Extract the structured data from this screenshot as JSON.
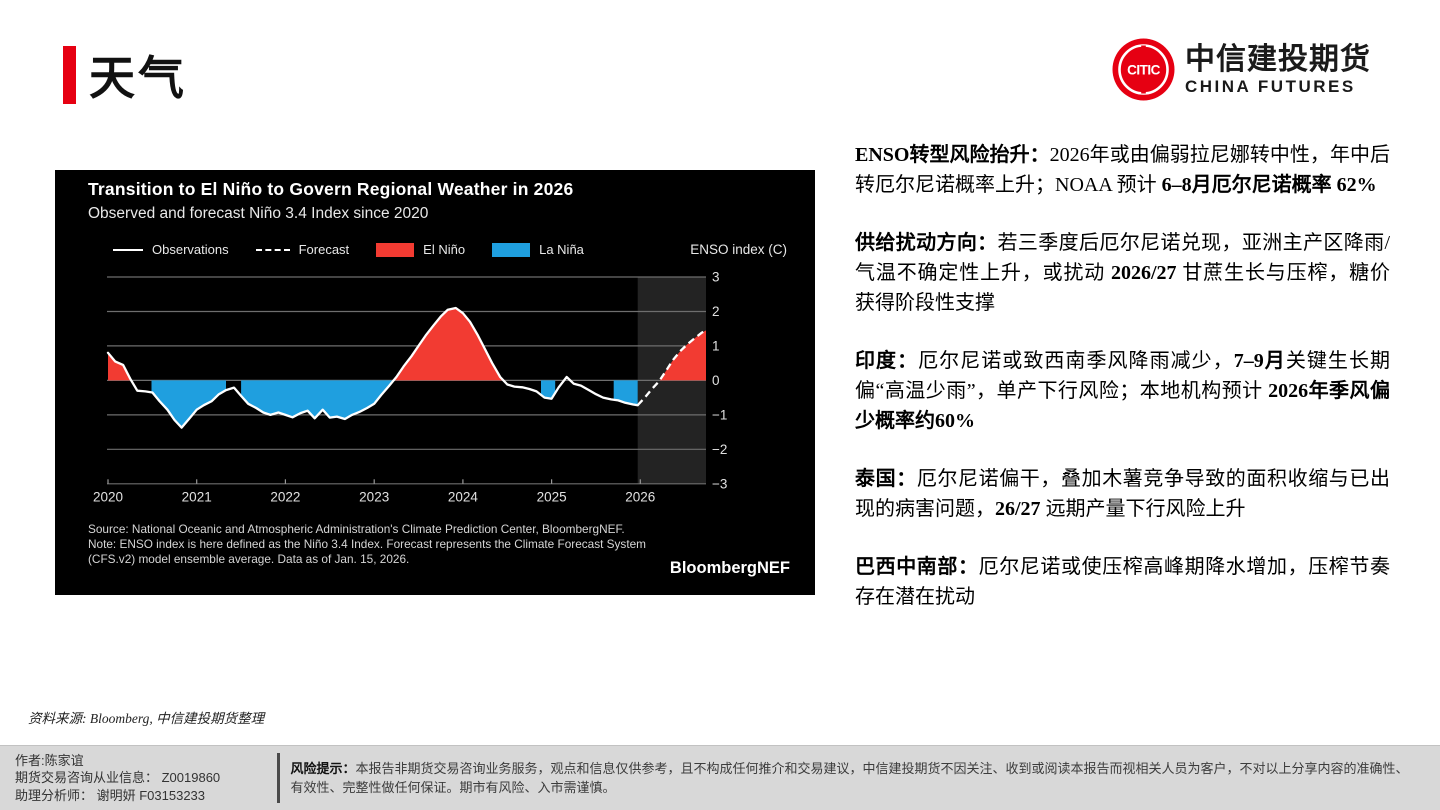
{
  "page": {
    "title": "天气",
    "source_line": "资料来源: Bloomberg, 中信建投期货整理"
  },
  "logo": {
    "monogram": "CITIC",
    "cn": "中信建投期货",
    "en": "CHINA FUTURES",
    "red": "#e60012"
  },
  "analysis": {
    "paragraphs": [
      {
        "runs": [
          {
            "bold": true,
            "text": "ENSO转型风险抬升："
          },
          {
            "bold": false,
            "text": "2026年或由偏弱拉尼娜转中性，年中后转厄尔尼诺概率上升；NOAA 预计 "
          },
          {
            "bold": true,
            "text": "6–8月厄尔尼诺概率 62%"
          }
        ]
      },
      {
        "runs": [
          {
            "bold": true,
            "text": "供给扰动方向："
          },
          {
            "bold": false,
            "text": "若三季度后厄尔尼诺兑现，亚洲主产区降雨/气温不确定性上升，或扰动 "
          },
          {
            "bold": true,
            "text": "2026/27"
          },
          {
            "bold": false,
            "text": " 甘蔗生长与压榨，糖价获得阶段性支撑"
          }
        ]
      },
      {
        "runs": [
          {
            "bold": true,
            "text": "印度："
          },
          {
            "bold": false,
            "text": "厄尔尼诺或致西南季风降雨减少，"
          },
          {
            "bold": true,
            "text": "7–9月"
          },
          {
            "bold": false,
            "text": "关键生长期偏“高温少雨”，单产下行风险；本地机构预计 "
          },
          {
            "bold": true,
            "text": "2026年季风偏少概率约60%"
          }
        ]
      },
      {
        "runs": [
          {
            "bold": true,
            "text": "泰国："
          },
          {
            "bold": false,
            "text": "厄尔尼诺偏干，叠加木薯竞争导致的面积收缩与已出现的病害问题，"
          },
          {
            "bold": true,
            "text": "26/27"
          },
          {
            "bold": false,
            "text": " 远期产量下行风险上升"
          }
        ]
      },
      {
        "runs": [
          {
            "bold": true,
            "text": "巴西中南部："
          },
          {
            "bold": false,
            "text": "厄尔尼诺或使压榨高峰期降水增加，压榨节奏存在潜在扰动"
          }
        ]
      }
    ]
  },
  "footer": {
    "author_line1": "作者:陈家谊",
    "author_line2": "期货交易咨询从业信息： Z0019860",
    "author_line3": "助理分析师： 谢明妍 F03153233",
    "risk_label": "风险提示：",
    "risk_text": "本报告非期货交易咨询业务服务，观点和信息仅供参考，且不构成任何推介和交易建议，中信建投期货不因关注、收到或阅读本报告而视相关人员为客户，不对以上分享内容的准确性、有效性、完整性做任何保证。期市有风险、入市需谨慎。"
  },
  "chart_data": {
    "type": "area",
    "title": "Transition to El Niño to Govern Regional Weather in 2026",
    "subtitle": "Observed and forecast Niño 3.4 Index since 2020",
    "axis_label": "ENSO index (C)",
    "legend": [
      "Observations",
      "Forecast",
      "El Niño",
      "La Niña"
    ],
    "brand": "BloombergNEF",
    "source_lines": [
      "Source: National Oceanic and Atmospheric Administration's Climate Prediction Center, BloombergNEF.",
      "Note: ENSO index is here defined as the Niño 3.4 Index. Forecast represents the Climate Forecast System (CFS.v2) model ensemble average. Data as of Jan. 15, 2026."
    ],
    "ylim": [
      -3,
      3
    ],
    "yticks": [
      3,
      2,
      1,
      0,
      -1,
      -2,
      -3
    ],
    "xticks": [
      2020,
      2021,
      2022,
      2023,
      2024,
      2025,
      2026
    ],
    "x_start": 2020.0,
    "x_end": 2026.74,
    "forecast_band_start": 2025.97,
    "grid": true,
    "legend_position": "top",
    "colors": {
      "el_nino": "#f23b32",
      "la_nina": "#1f9fdf",
      "line": "#ffffff",
      "grid": "#6e6e6e",
      "band": "#232323",
      "bg": "#000000"
    },
    "observations": [
      [
        2020.0,
        0.8
      ],
      [
        2020.08,
        0.55
      ],
      [
        2020.17,
        0.45
      ],
      [
        2020.25,
        0.05
      ],
      [
        2020.33,
        -0.3
      ],
      [
        2020.42,
        -0.32
      ],
      [
        2020.5,
        -0.35
      ],
      [
        2020.58,
        -0.6
      ],
      [
        2020.67,
        -0.85
      ],
      [
        2020.75,
        -1.15
      ],
      [
        2020.83,
        -1.37
      ],
      [
        2020.92,
        -1.1
      ],
      [
        2021.0,
        -0.85
      ],
      [
        2021.08,
        -0.72
      ],
      [
        2021.17,
        -0.6
      ],
      [
        2021.25,
        -0.4
      ],
      [
        2021.33,
        -0.28
      ],
      [
        2021.42,
        -0.21
      ],
      [
        2021.5,
        -0.45
      ],
      [
        2021.58,
        -0.68
      ],
      [
        2021.67,
        -0.8
      ],
      [
        2021.75,
        -0.93
      ],
      [
        2021.83,
        -1.0
      ],
      [
        2021.92,
        -0.93
      ],
      [
        2022.0,
        -1.0
      ],
      [
        2022.08,
        -1.07
      ],
      [
        2022.17,
        -0.95
      ],
      [
        2022.25,
        -0.88
      ],
      [
        2022.33,
        -1.1
      ],
      [
        2022.42,
        -0.85
      ],
      [
        2022.5,
        -1.08
      ],
      [
        2022.58,
        -1.05
      ],
      [
        2022.67,
        -1.12
      ],
      [
        2022.75,
        -1.0
      ],
      [
        2022.83,
        -0.92
      ],
      [
        2022.92,
        -0.8
      ],
      [
        2023.0,
        -0.68
      ],
      [
        2023.08,
        -0.42
      ],
      [
        2023.17,
        -0.15
      ],
      [
        2023.25,
        0.1
      ],
      [
        2023.33,
        0.4
      ],
      [
        2023.42,
        0.7
      ],
      [
        2023.5,
        1.0
      ],
      [
        2023.58,
        1.3
      ],
      [
        2023.67,
        1.6
      ],
      [
        2023.75,
        1.85
      ],
      [
        2023.83,
        2.05
      ],
      [
        2023.92,
        2.1
      ],
      [
        2024.0,
        1.95
      ],
      [
        2024.08,
        1.7
      ],
      [
        2024.17,
        1.3
      ],
      [
        2024.25,
        0.9
      ],
      [
        2024.33,
        0.5
      ],
      [
        2024.42,
        0.1
      ],
      [
        2024.5,
        -0.12
      ],
      [
        2024.58,
        -0.18
      ],
      [
        2024.67,
        -0.2
      ],
      [
        2024.75,
        -0.25
      ],
      [
        2024.83,
        -0.32
      ],
      [
        2024.92,
        -0.5
      ],
      [
        2025.0,
        -0.53
      ],
      [
        2025.08,
        -0.2
      ],
      [
        2025.17,
        0.1
      ],
      [
        2025.25,
        -0.1
      ],
      [
        2025.33,
        -0.15
      ],
      [
        2025.42,
        -0.28
      ],
      [
        2025.5,
        -0.4
      ],
      [
        2025.58,
        -0.5
      ],
      [
        2025.67,
        -0.55
      ],
      [
        2025.75,
        -0.58
      ],
      [
        2025.83,
        -0.65
      ],
      [
        2025.92,
        -0.7
      ],
      [
        2025.97,
        -0.72
      ]
    ],
    "forecast": [
      [
        2025.97,
        -0.72
      ],
      [
        2026.05,
        -0.5
      ],
      [
        2026.13,
        -0.25
      ],
      [
        2026.21,
        -0.03
      ],
      [
        2026.29,
        0.28
      ],
      [
        2026.37,
        0.6
      ],
      [
        2026.45,
        0.85
      ],
      [
        2026.53,
        1.05
      ],
      [
        2026.61,
        1.22
      ],
      [
        2026.69,
        1.38
      ],
      [
        2026.74,
        1.45
      ]
    ],
    "fill_regions": [
      {
        "type": "el_nino",
        "from": 2020.0,
        "to": 2020.26
      },
      {
        "type": "la_nina",
        "from": 2020.49,
        "to": 2021.33
      },
      {
        "type": "la_nina",
        "from": 2021.5,
        "to": 2023.23
      },
      {
        "type": "el_nino",
        "from": 2023.23,
        "to": 2024.44
      },
      {
        "type": "la_nina",
        "from": 2024.88,
        "to": 2025.04
      },
      {
        "type": "la_nina",
        "from": 2025.7,
        "to": 2025.97
      },
      {
        "type": "el_nino",
        "from": 2026.22,
        "to": 2026.74
      }
    ]
  }
}
